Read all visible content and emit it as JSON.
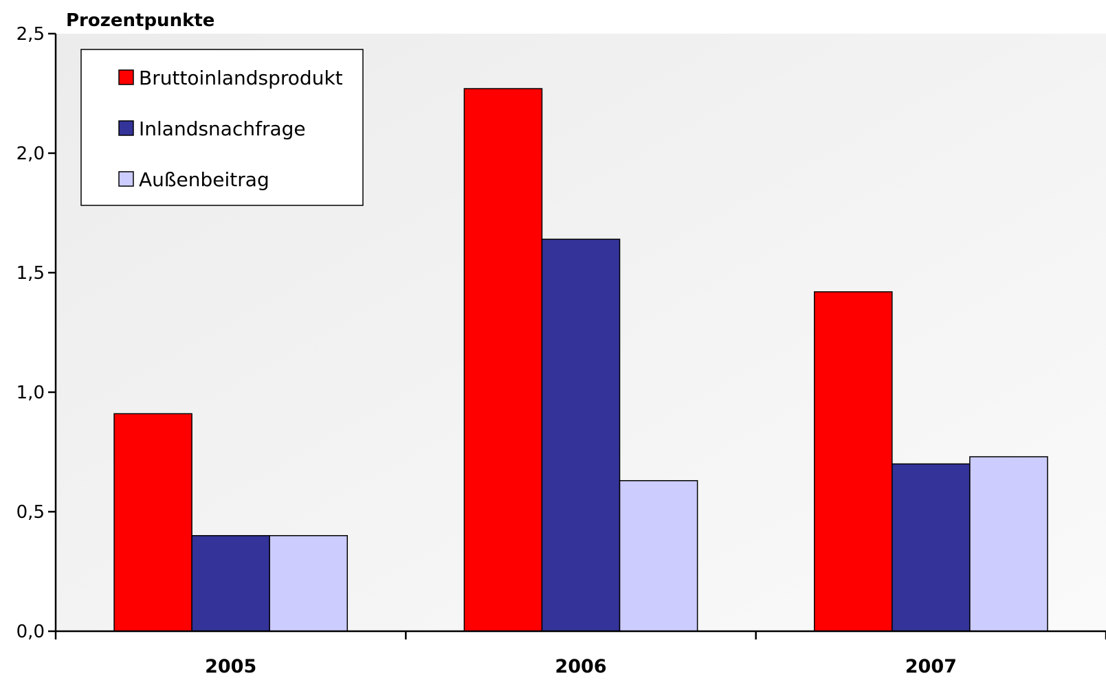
{
  "chart_data": {
    "type": "bar",
    "ylabel": "Prozentpunkte",
    "categories": [
      "2005",
      "2006",
      "2007"
    ],
    "series": [
      {
        "name": "Bruttoinlandsprodukt",
        "values": [
          0.91,
          2.27,
          1.42
        ],
        "color": "#ff0000"
      },
      {
        "name": "Inlandsnachfrage",
        "values": [
          0.4,
          1.64,
          0.7
        ],
        "color": "#333399"
      },
      {
        "name": "Außenbeitrag",
        "values": [
          0.4,
          0.63,
          0.73
        ],
        "color": "#ccccff"
      }
    ],
    "ylim": [
      0,
      2.5
    ],
    "yticks": [
      "0,0",
      "0,5",
      "1,0",
      "1,5",
      "2,0",
      "2,5"
    ],
    "grid": false,
    "legend": "top-left",
    "plot_background": "#f2f2f2"
  }
}
